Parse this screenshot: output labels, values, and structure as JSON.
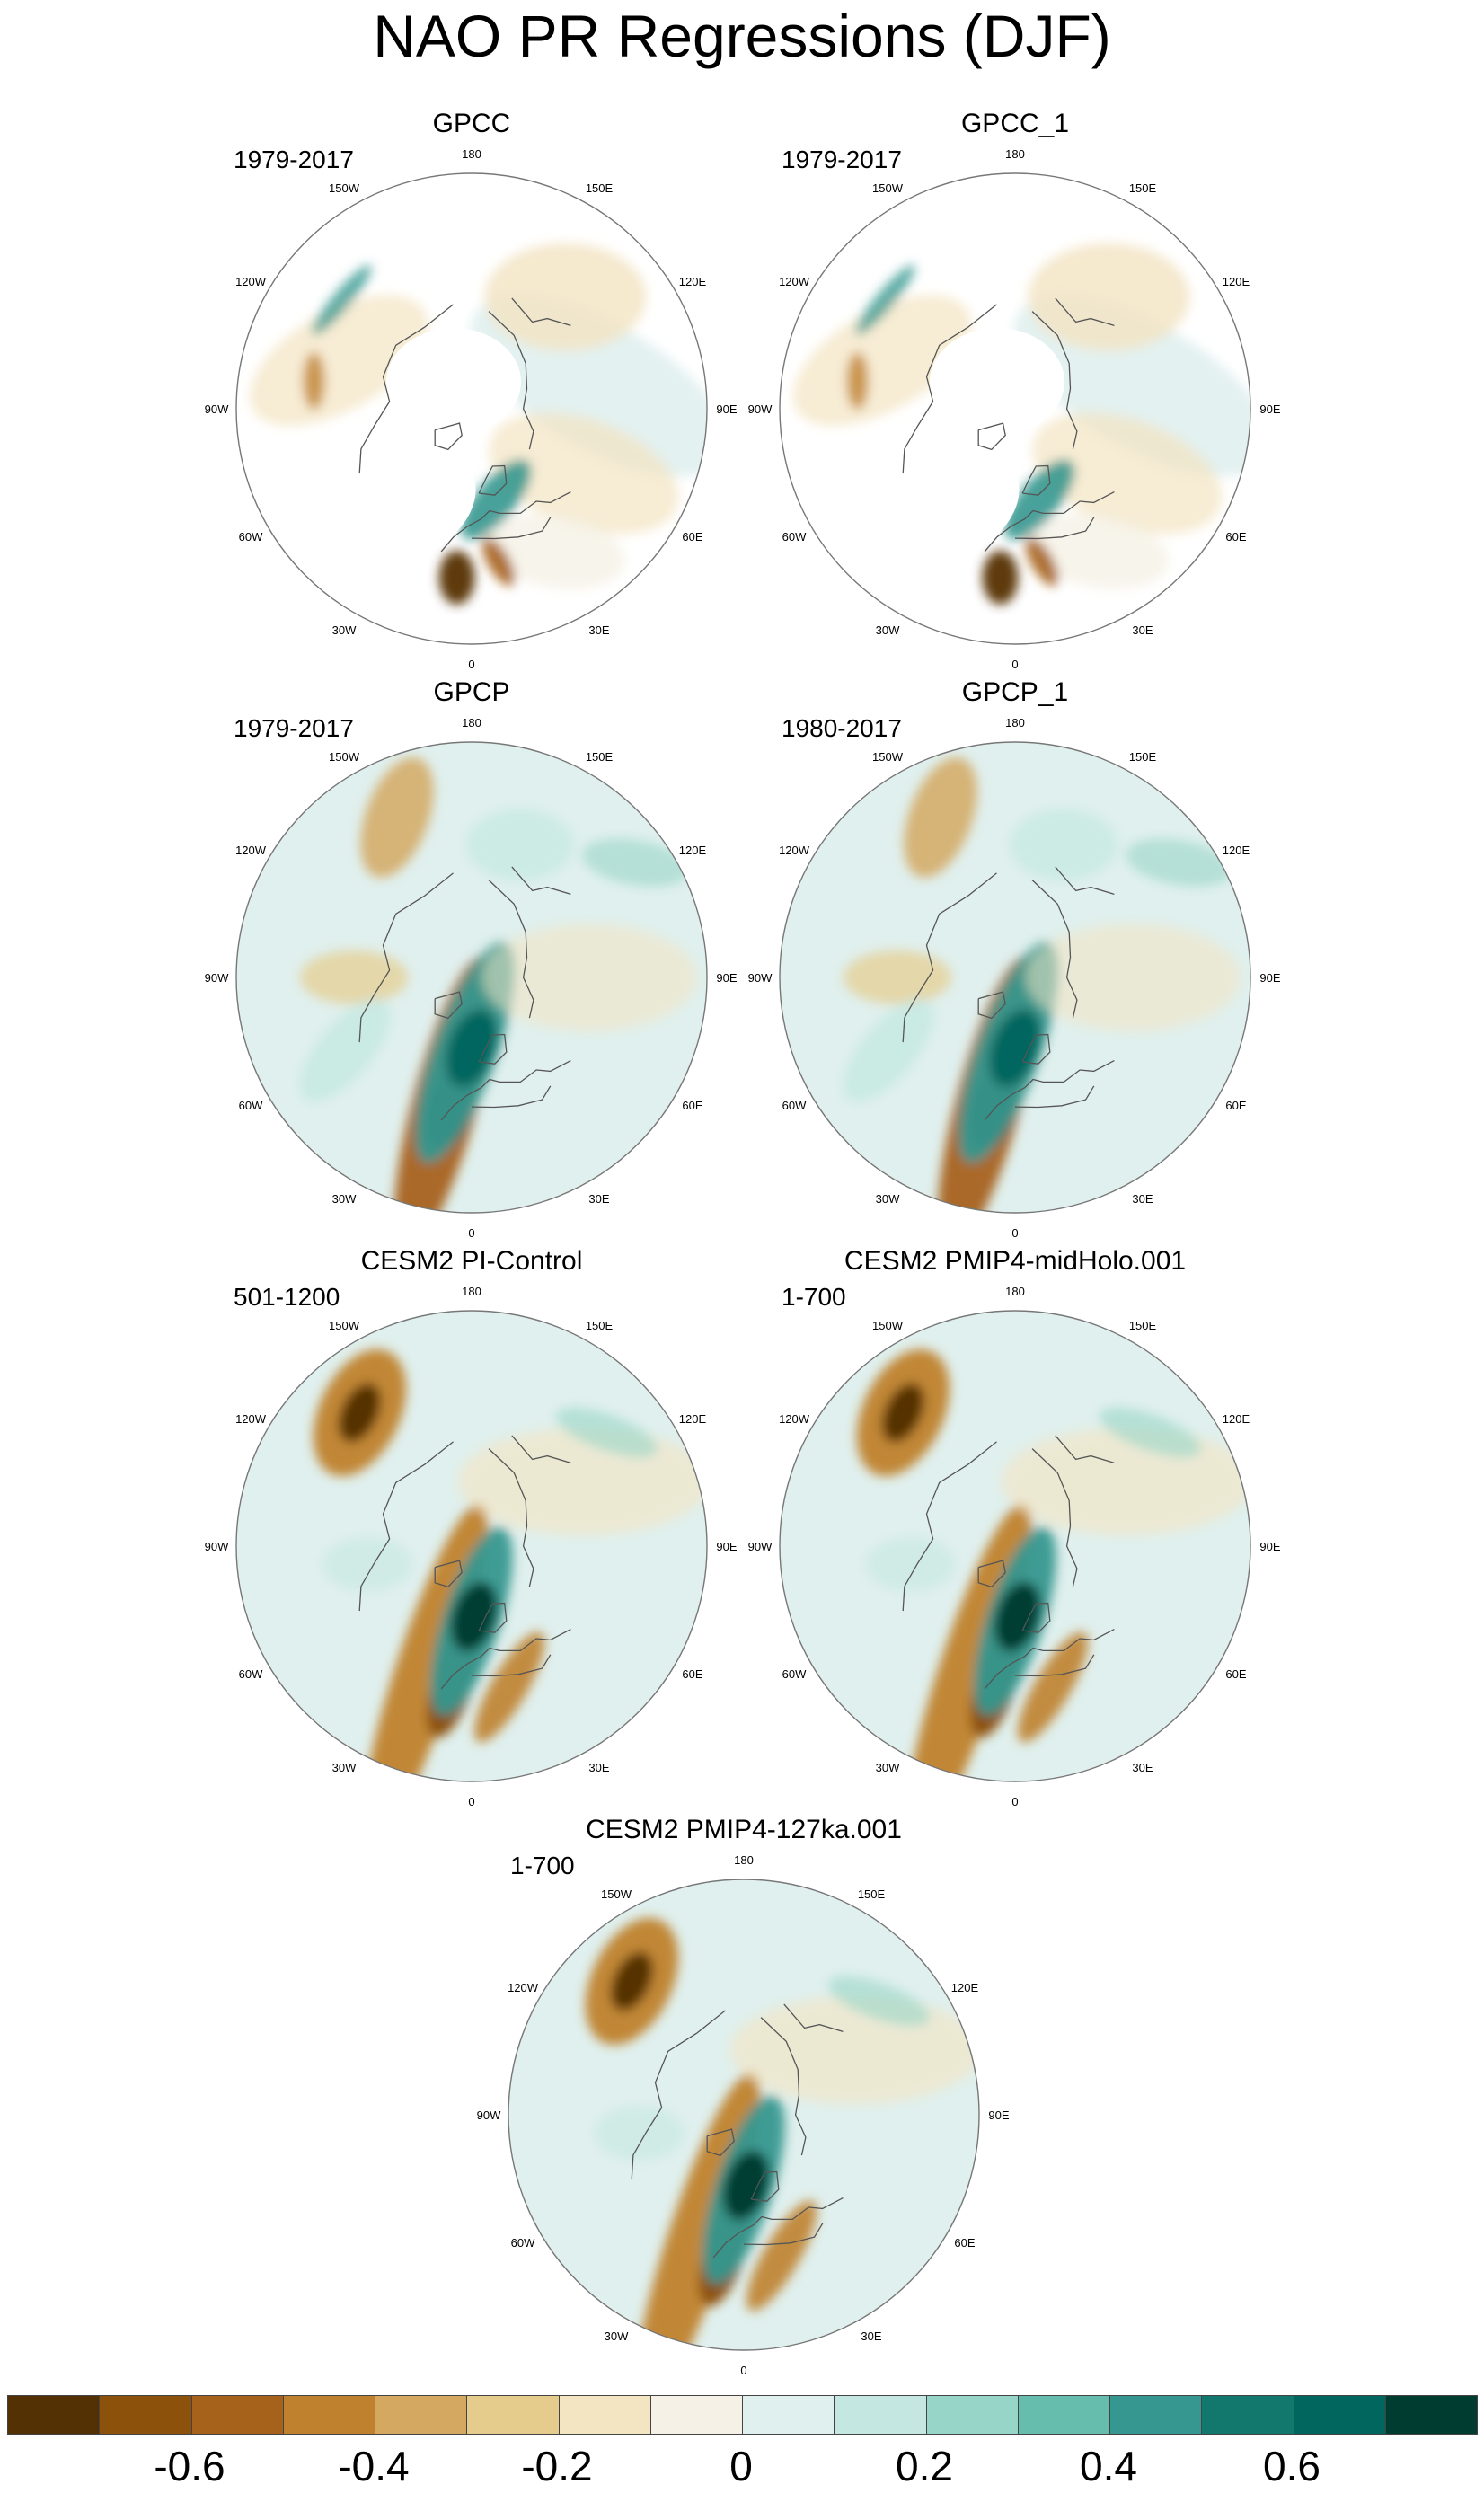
{
  "title": "NAO PR Regressions (DJF)",
  "panels": [
    {
      "name": "GPCC",
      "period": "1979-2017",
      "type": "gauge"
    },
    {
      "name": "GPCC_1",
      "period": "1979-2017",
      "type": "gauge"
    },
    {
      "name": "GPCP",
      "period": "1979-2017",
      "type": "sat"
    },
    {
      "name": "GPCP_1",
      "period": "1980-2017",
      "type": "sat"
    },
    {
      "name": "CESM2 PI-Control",
      "period": "501-1200",
      "type": "model"
    },
    {
      "name": "CESM2 PMIP4-midHolo.001",
      "period": "1-700",
      "type": "model"
    },
    {
      "name": "CESM2 PMIP4-127ka.001",
      "period": "1-700",
      "type": "model"
    }
  ],
  "longitude_labels": [
    "180",
    "150E",
    "120E",
    "90E",
    "60E",
    "30E",
    "0",
    "30W",
    "60W",
    "90W",
    "120W",
    "150W"
  ],
  "colorbar": {
    "colors": [
      "#543005",
      "#8c510a",
      "#a6611a",
      "#bf812d",
      "#d4a860",
      "#e6cc8c",
      "#f3e4c2",
      "#f5f1e6",
      "#e0f0ee",
      "#c4e8e1",
      "#97d5c8",
      "#66bcad",
      "#35978f",
      "#12786d",
      "#01665e",
      "#003c30"
    ],
    "labels": [
      "-0.6",
      "-0.4",
      "-0.2",
      "0",
      "0.2",
      "0.4",
      "0.6"
    ]
  }
}
